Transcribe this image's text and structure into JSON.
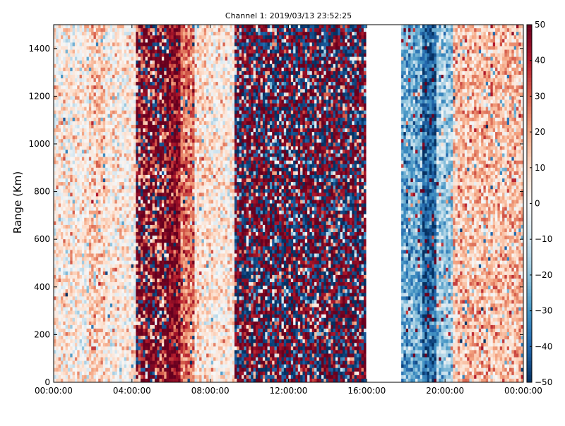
{
  "chart_data": {
    "type": "heatmap",
    "title": "Channel 1: 2019/03/13 23:52:25",
    "xlabel": "",
    "ylabel": "Range (Km)",
    "x_ticks": [
      "00:00:00",
      "04:00:00",
      "08:00:00",
      "12:00:00",
      "16:00:00",
      "20:00:00",
      "00:00:00"
    ],
    "x_range_hours": [
      0,
      24
    ],
    "ylim": [
      0,
      1500
    ],
    "y_ticks": [
      0,
      200,
      400,
      600,
      800,
      1000,
      1200,
      1400
    ],
    "colorbar": {
      "colormap": "RdBu_r",
      "range": [
        -50,
        50
      ],
      "ticks": [
        -50,
        -40,
        -30,
        -20,
        -10,
        0,
        10,
        20,
        30,
        40,
        50
      ],
      "low_color": "#053061",
      "mid_color": "#f7f7f7",
      "high_color": "#67001f"
    },
    "no_data_intervals_hours": [
      [
        16.0,
        17.8
      ]
    ],
    "bands": [
      {
        "hours": [
          0.0,
          1.8
        ],
        "typical_value": 5
      },
      {
        "hours": [
          1.8,
          2.6
        ],
        "typical_value": 12
      },
      {
        "hours": [
          2.6,
          4.2
        ],
        "typical_value": 5
      },
      {
        "hours": [
          4.2,
          5.8
        ],
        "typical_value": 30
      },
      {
        "hours": [
          5.8,
          6.5
        ],
        "typical_value": 45
      },
      {
        "hours": [
          6.5,
          7.2
        ],
        "typical_value": 28
      },
      {
        "hours": [
          7.2,
          8.0
        ],
        "typical_value": 8
      },
      {
        "hours": [
          8.0,
          9.2
        ],
        "typical_value": 5
      },
      {
        "hours": [
          9.2,
          16.0
        ],
        "typical_value": 0
      },
      {
        "hours": [
          17.8,
          18.8
        ],
        "typical_value": -25
      },
      {
        "hours": [
          18.8,
          19.6
        ],
        "typical_value": -40
      },
      {
        "hours": [
          19.6,
          20.4
        ],
        "typical_value": -18
      },
      {
        "hours": [
          20.4,
          24.0
        ],
        "typical_value": 15
      }
    ]
  }
}
